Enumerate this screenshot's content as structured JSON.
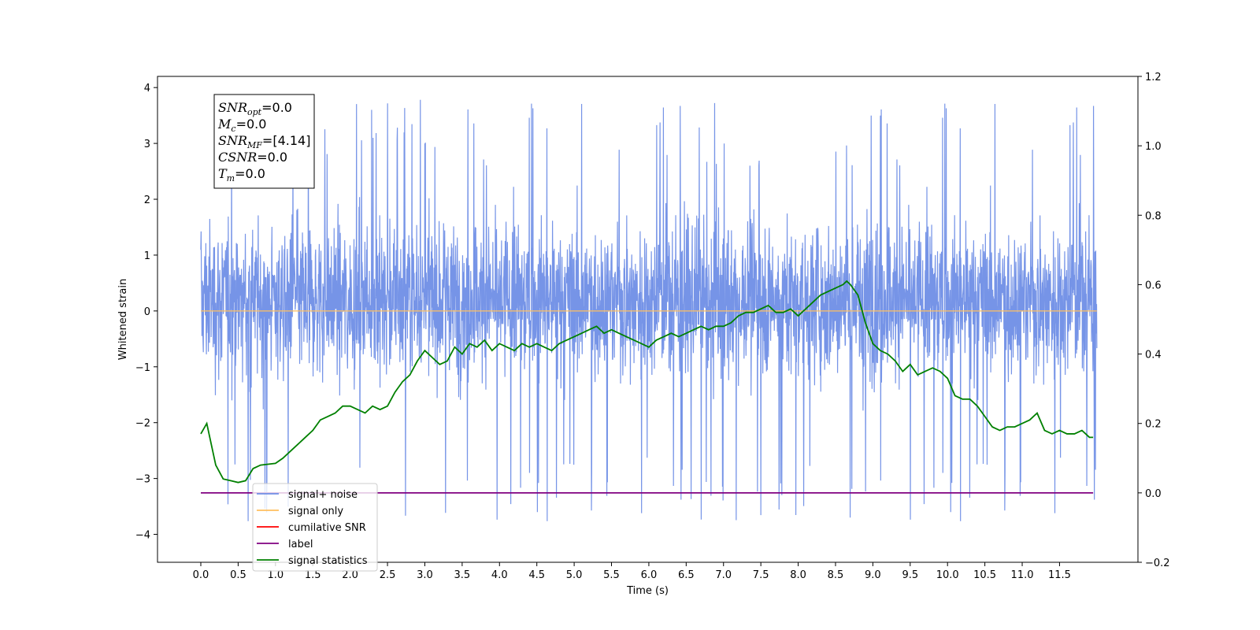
{
  "chart_data": {
    "type": "line",
    "xlabel": "Time (s)",
    "ylabel_left": "Whitened strain",
    "ylabel_right": "",
    "xlim": [
      -0.58,
      12.55
    ],
    "ylim_left": [
      -4.5,
      4.2
    ],
    "ylim_right": [
      -0.2,
      1.2
    ],
    "x_ticks": [
      0.0,
      0.5,
      1.0,
      1.5,
      2.0,
      2.5,
      3.0,
      3.5,
      4.0,
      4.5,
      5.0,
      5.5,
      6.0,
      6.5,
      7.0,
      7.5,
      8.0,
      8.5,
      9.0,
      9.5,
      10.0,
      10.5,
      11.0,
      11.5
    ],
    "x_tick_labels": [
      "0.0",
      "0.5",
      "1.0",
      "1.5",
      "2.0",
      "2.5",
      "3.0",
      "3.5",
      "4.0",
      "4.5",
      "5.0",
      "5.5",
      "6.0",
      "6.5",
      "7.0",
      "7.5",
      "8.0",
      "8.5",
      "9.0",
      "9.5",
      "10.0",
      "10.5",
      "11.0",
      "11.5"
    ],
    "y_left_ticks": [
      -4,
      -3,
      -2,
      -1,
      0,
      1,
      2,
      3,
      4
    ],
    "y_left_tick_labels": [
      "−4",
      "−3",
      "−2",
      "−1",
      "0",
      "1",
      "2",
      "3",
      "4"
    ],
    "y_right_ticks": [
      -0.2,
      0.0,
      0.2,
      0.4,
      0.6,
      0.8,
      1.0,
      1.2
    ],
    "y_right_tick_labels": [
      "−0.2",
      "0.0",
      "0.2",
      "0.4",
      "0.6",
      "0.8",
      "1.0",
      "1.2"
    ],
    "noise": {
      "name": "signal+ noise",
      "color": "#6f8ee6",
      "x_range": [
        0.0,
        12.0
      ],
      "typical_range": [
        -2.0,
        2.5
      ],
      "extreme_range": [
        -4.1,
        3.8
      ]
    },
    "series": [
      {
        "name": "signal only",
        "axis": "left",
        "color": "#ffbf5e",
        "x": [
          0.0,
          12.0
        ],
        "y": [
          0.0,
          0.0
        ]
      },
      {
        "name": "cumilative SNR",
        "axis": "right",
        "color": "#ff0000",
        "x": [],
        "y": []
      },
      {
        "name": "label",
        "axis": "right",
        "color": "#800080",
        "x": [
          0.0,
          11.95
        ],
        "y": [
          0.0,
          0.0
        ]
      },
      {
        "name": "signal statistics",
        "axis": "right",
        "color": "#008000",
        "x": [
          0.0,
          0.08,
          0.15,
          0.2,
          0.3,
          0.4,
          0.5,
          0.6,
          0.7,
          0.8,
          1.0,
          1.1,
          1.2,
          1.3,
          1.4,
          1.5,
          1.6,
          1.7,
          1.8,
          1.9,
          2.0,
          2.1,
          2.2,
          2.3,
          2.4,
          2.5,
          2.6,
          2.7,
          2.8,
          2.9,
          3.0,
          3.1,
          3.2,
          3.3,
          3.4,
          3.5,
          3.6,
          3.7,
          3.8,
          3.9,
          4.0,
          4.1,
          4.2,
          4.3,
          4.4,
          4.5,
          4.6,
          4.7,
          4.8,
          4.9,
          5.0,
          5.1,
          5.2,
          5.3,
          5.4,
          5.5,
          5.6,
          5.7,
          5.8,
          5.9,
          6.0,
          6.1,
          6.2,
          6.3,
          6.4,
          6.5,
          6.6,
          6.7,
          6.8,
          6.9,
          7.0,
          7.1,
          7.2,
          7.3,
          7.4,
          7.5,
          7.6,
          7.7,
          7.8,
          7.9,
          8.0,
          8.1,
          8.2,
          8.3,
          8.4,
          8.5,
          8.6,
          8.65,
          8.7,
          8.8,
          8.9,
          9.0,
          9.1,
          9.2,
          9.3,
          9.4,
          9.5,
          9.6,
          9.7,
          9.8,
          9.9,
          10.0,
          10.1,
          10.2,
          10.3,
          10.4,
          10.5,
          10.6,
          10.7,
          10.8,
          10.9,
          11.0,
          11.1,
          11.2,
          11.3,
          11.4,
          11.5,
          11.6,
          11.7,
          11.8,
          11.9,
          11.95
        ],
        "y": [
          0.17,
          0.2,
          0.13,
          0.08,
          0.04,
          0.035,
          0.03,
          0.035,
          0.07,
          0.08,
          0.085,
          0.1,
          0.12,
          0.14,
          0.16,
          0.18,
          0.21,
          0.22,
          0.23,
          0.25,
          0.25,
          0.24,
          0.23,
          0.25,
          0.24,
          0.25,
          0.29,
          0.32,
          0.34,
          0.38,
          0.41,
          0.39,
          0.37,
          0.38,
          0.42,
          0.4,
          0.43,
          0.42,
          0.44,
          0.41,
          0.43,
          0.42,
          0.41,
          0.43,
          0.42,
          0.43,
          0.42,
          0.41,
          0.43,
          0.44,
          0.45,
          0.46,
          0.47,
          0.48,
          0.46,
          0.47,
          0.46,
          0.45,
          0.44,
          0.43,
          0.42,
          0.44,
          0.45,
          0.46,
          0.45,
          0.46,
          0.47,
          0.48,
          0.47,
          0.48,
          0.48,
          0.49,
          0.51,
          0.52,
          0.52,
          0.53,
          0.54,
          0.52,
          0.52,
          0.53,
          0.51,
          0.53,
          0.55,
          0.57,
          0.58,
          0.59,
          0.6,
          0.61,
          0.6,
          0.57,
          0.49,
          0.43,
          0.41,
          0.4,
          0.38,
          0.35,
          0.37,
          0.34,
          0.35,
          0.36,
          0.35,
          0.33,
          0.28,
          0.27,
          0.27,
          0.25,
          0.22,
          0.19,
          0.18,
          0.19,
          0.19,
          0.2,
          0.21,
          0.23,
          0.18,
          0.17,
          0.18,
          0.17,
          0.17,
          0.18,
          0.16,
          0.16
        ]
      }
    ],
    "legend": {
      "placement": "lower-left",
      "entries": [
        {
          "label": "signal+ noise",
          "color": "#6f8ee6"
        },
        {
          "label": "signal only",
          "color": "#ffbf5e"
        },
        {
          "label": "cumilative SNR",
          "color": "#ff0000"
        },
        {
          "label": "label",
          "color": "#800080"
        },
        {
          "label": "signal statistics",
          "color": "#008000"
        }
      ]
    },
    "info_box": {
      "placement": "top-left",
      "lines": [
        {
          "name": "SNR",
          "sub": "opt",
          "value": "=0.0"
        },
        {
          "name": "M",
          "sub": "c",
          "value": "=0.0"
        },
        {
          "name": "SNR",
          "sub": "MF",
          "value": "=[4.14]"
        },
        {
          "name": "CSNR",
          "sub": "",
          "value": "=0.0"
        },
        {
          "name": "T",
          "sub": "m",
          "value": "=0.0"
        }
      ]
    }
  }
}
